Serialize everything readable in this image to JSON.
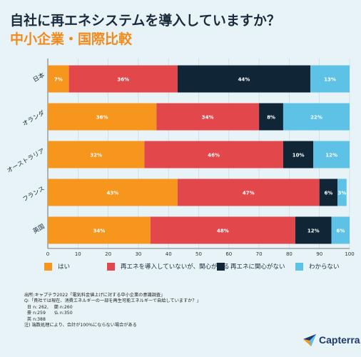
{
  "title": "自社に再エネシステムを導入していますか？",
  "subtitle": "中小企業・国際比較",
  "colors": {
    "background": "#e8f3f8",
    "series": [
      "#f7961d",
      "#e2474b",
      "#102637",
      "#5ec2e6"
    ],
    "title": "#1b2b3c",
    "subtitle": "#f28a1b"
  },
  "chart_data": {
    "type": "bar",
    "orientation": "horizontal",
    "stacked": true,
    "categories": [
      "日本",
      "オランダ",
      "オーストラリア",
      "フランス",
      "英国"
    ],
    "series": [
      {
        "name": "はい",
        "values": [
          7,
          36,
          32,
          43,
          34
        ]
      },
      {
        "name": "再エネを導入していないが、関心がある",
        "values": [
          36,
          34,
          46,
          47,
          48
        ]
      },
      {
        "name": "再エネに関心がない",
        "values": [
          44,
          8,
          10,
          6,
          12
        ]
      },
      {
        "name": "わからない",
        "values": [
          13,
          22,
          12,
          3,
          6
        ]
      }
    ],
    "xlim": [
      0,
      100
    ],
    "xticks": [
      "0",
      "10",
      "20",
      "30",
      "40",
      "50",
      "60",
      "70",
      "80",
      "90",
      "100"
    ],
    "grid": true,
    "legend_position": "bottom",
    "value_suffix": "%"
  },
  "legend": [
    "はい",
    "再エネを導入していないが、関心がある",
    "再エネに関心がない",
    "わからない"
  ],
  "notes": [
    "出所:キャプテラ2022「電気料金値上げに対する中小企業の意識調査」",
    "Q:「貴社では現在、消費エネルギーの一部を再生可能エネルギーで自給していますか？」",
    "  日 n: 262,    蘭 n:260",
    "  豪 n:259      仏 n:350",
    "  英 n:388",
    "注) 端数処理により、合計が100%にならない場合がある"
  ],
  "logo": {
    "text": "Capterra",
    "icon": "capterra-arrow-icon"
  }
}
